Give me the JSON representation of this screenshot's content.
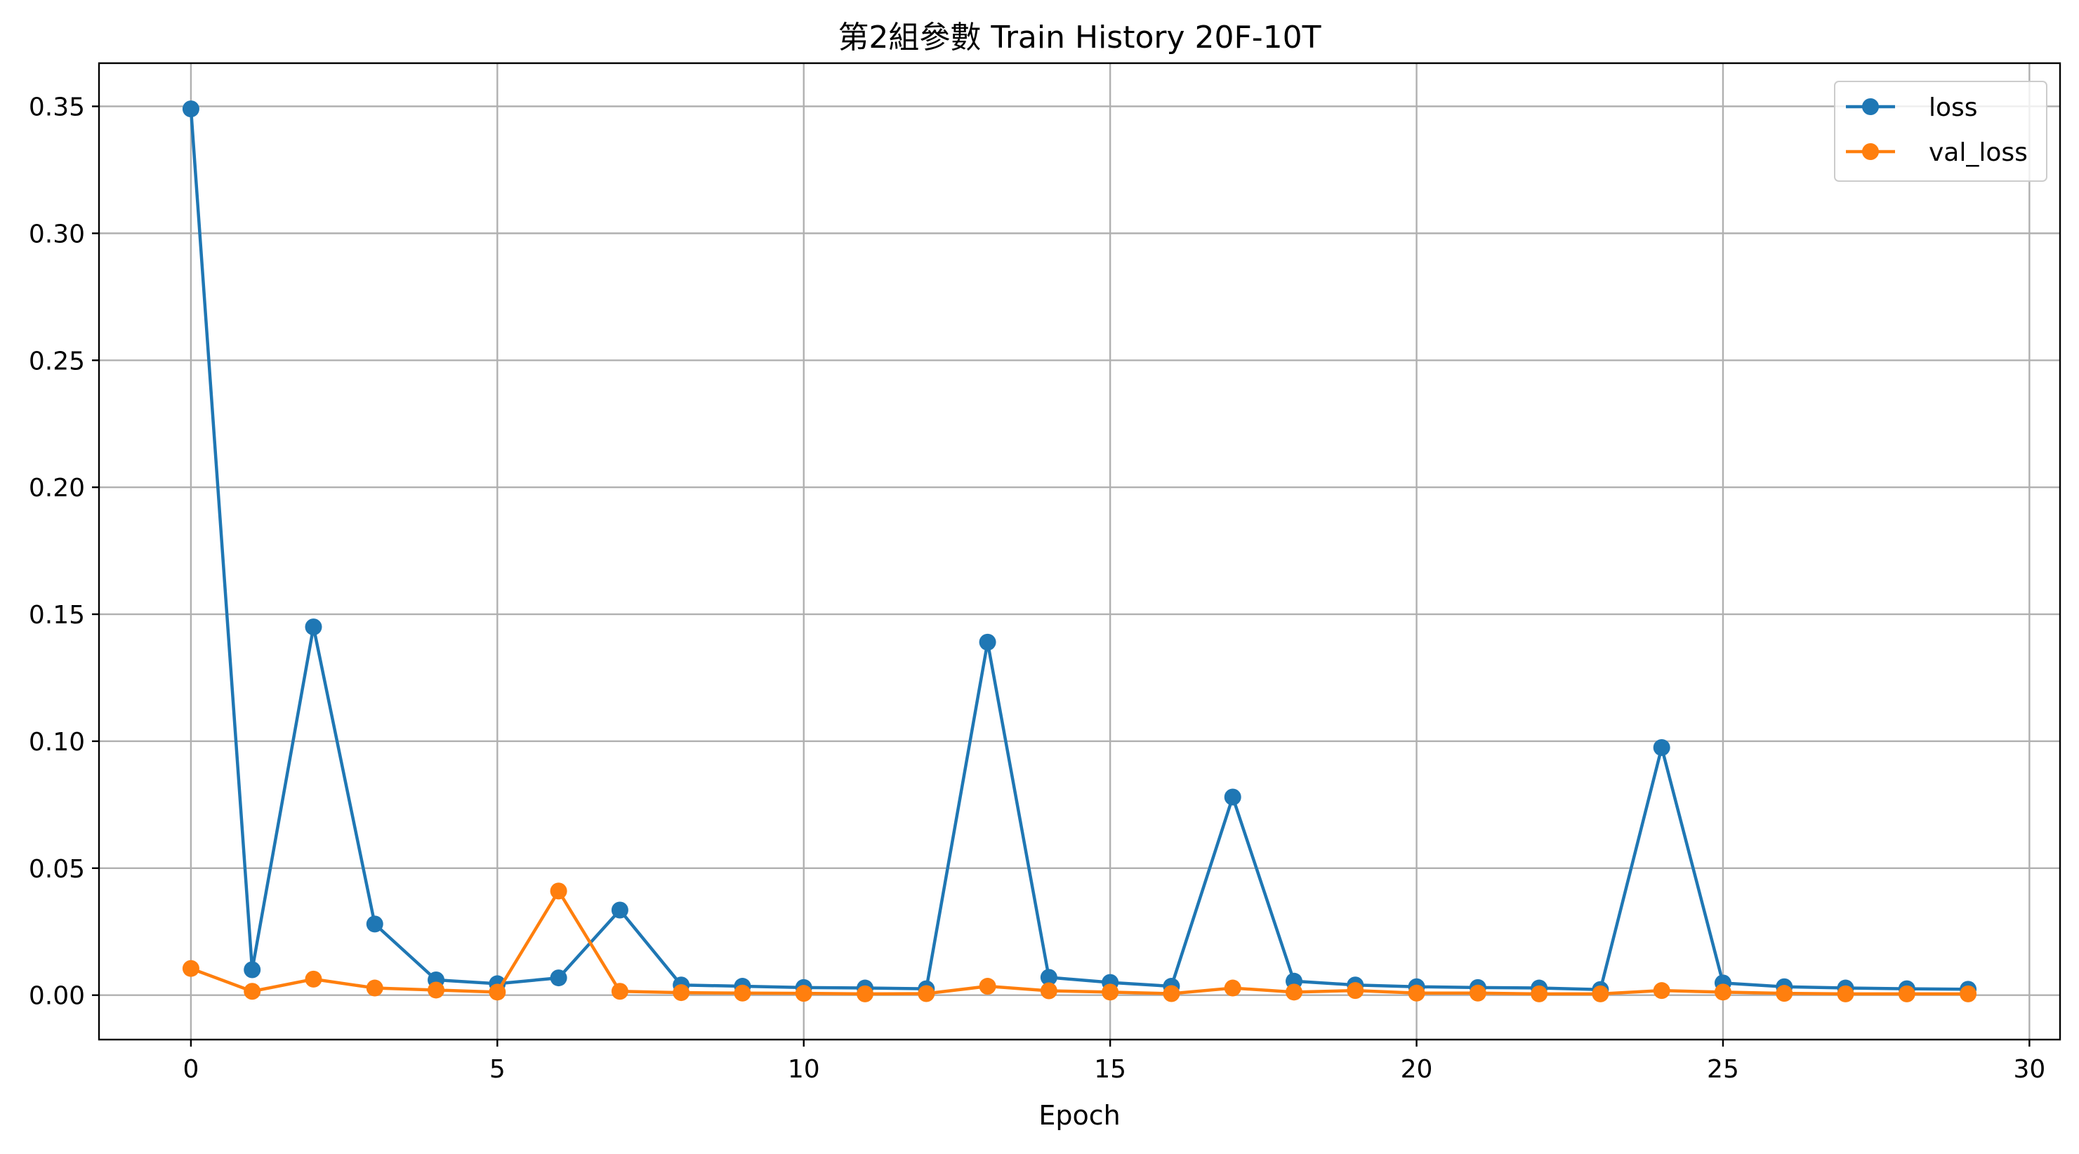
{
  "chart_data": {
    "type": "line",
    "title": "第2組參數 Train History 20F-10T",
    "xlabel": "Epoch",
    "ylabel": "",
    "xlim": [
      -1.5,
      30.5
    ],
    "ylim": [
      -0.0175,
      0.367
    ],
    "xticks": [
      0,
      5,
      10,
      15,
      20,
      25,
      30
    ],
    "xtick_labels": [
      "0",
      "5",
      "10",
      "15",
      "20",
      "25",
      "30"
    ],
    "yticks": [
      0.0,
      0.05,
      0.1,
      0.15,
      0.2,
      0.25,
      0.3,
      0.35
    ],
    "ytick_labels": [
      "0.00",
      "0.05",
      "0.10",
      "0.15",
      "0.20",
      "0.25",
      "0.30",
      "0.35"
    ],
    "grid": true,
    "legend_position": "top-right",
    "x": [
      0,
      1,
      2,
      3,
      4,
      5,
      6,
      7,
      8,
      9,
      10,
      11,
      12,
      13,
      14,
      15,
      16,
      17,
      18,
      19,
      20,
      21,
      22,
      23,
      24,
      25,
      26,
      27,
      28,
      29
    ],
    "series": [
      {
        "name": "loss",
        "color": "#1f77b4",
        "marker": "circle",
        "values": [
          0.349,
          0.01,
          0.145,
          0.028,
          0.006,
          0.0045,
          0.0068,
          0.0335,
          0.004,
          0.0035,
          0.003,
          0.0028,
          0.0025,
          0.139,
          0.007,
          0.005,
          0.0035,
          0.078,
          0.0055,
          0.004,
          0.0033,
          0.003,
          0.0028,
          0.0022,
          0.0975,
          0.0048,
          0.0033,
          0.0028,
          0.0025,
          0.0023
        ]
      },
      {
        "name": "val_loss",
        "color": "#ff7f0e",
        "marker": "circle",
        "values": [
          0.0105,
          0.0015,
          0.0063,
          0.0028,
          0.002,
          0.0012,
          0.041,
          0.0015,
          0.001,
          0.0008,
          0.0007,
          0.0005,
          0.0006,
          0.0035,
          0.0017,
          0.0012,
          0.0006,
          0.0028,
          0.0012,
          0.0018,
          0.0008,
          0.0008,
          0.0005,
          0.0005,
          0.0018,
          0.0012,
          0.0007,
          0.0005,
          0.0005,
          0.0005
        ]
      }
    ]
  }
}
